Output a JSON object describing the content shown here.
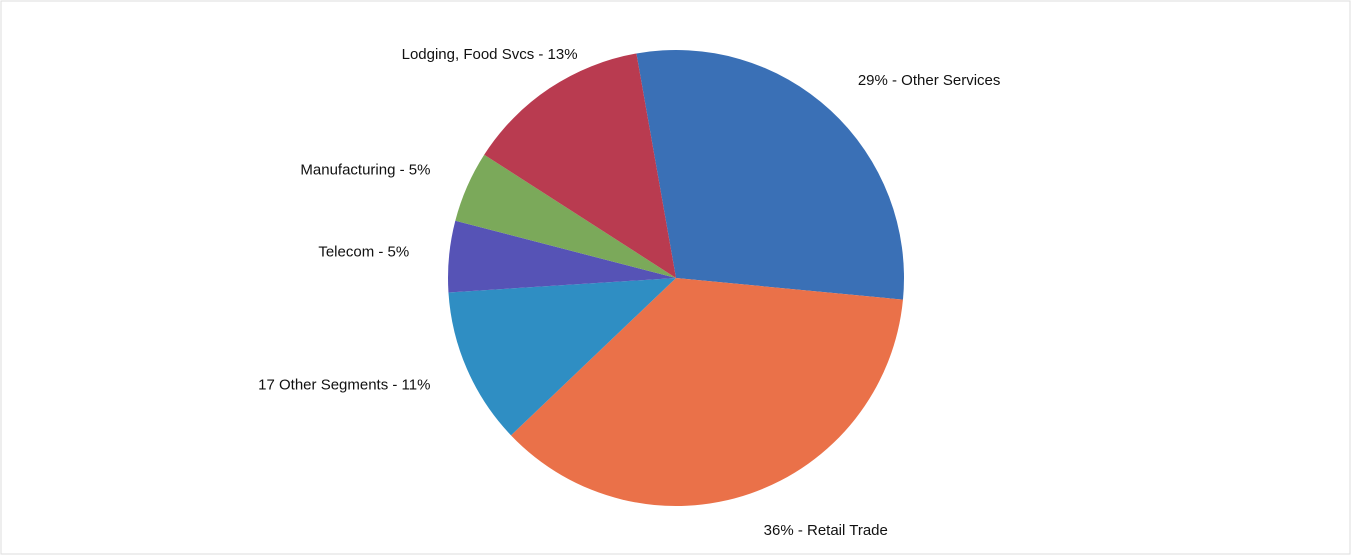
{
  "chart_data": {
    "type": "pie",
    "values": [
      29,
      36,
      11,
      5,
      5,
      13
    ],
    "value_labels": [
      "29% - Other Services",
      "36% - Retail Trade",
      "17 Other Segments - 11%",
      "Telecom - 5%",
      "Manufacturing - 5%",
      "Lodging, Food Svcs - 13%"
    ],
    "colors": [
      "#3a70b6",
      "#ea7149",
      "#2f8ec3",
      "#5653b6",
      "#7ba95a",
      "#b93b50"
    ]
  }
}
